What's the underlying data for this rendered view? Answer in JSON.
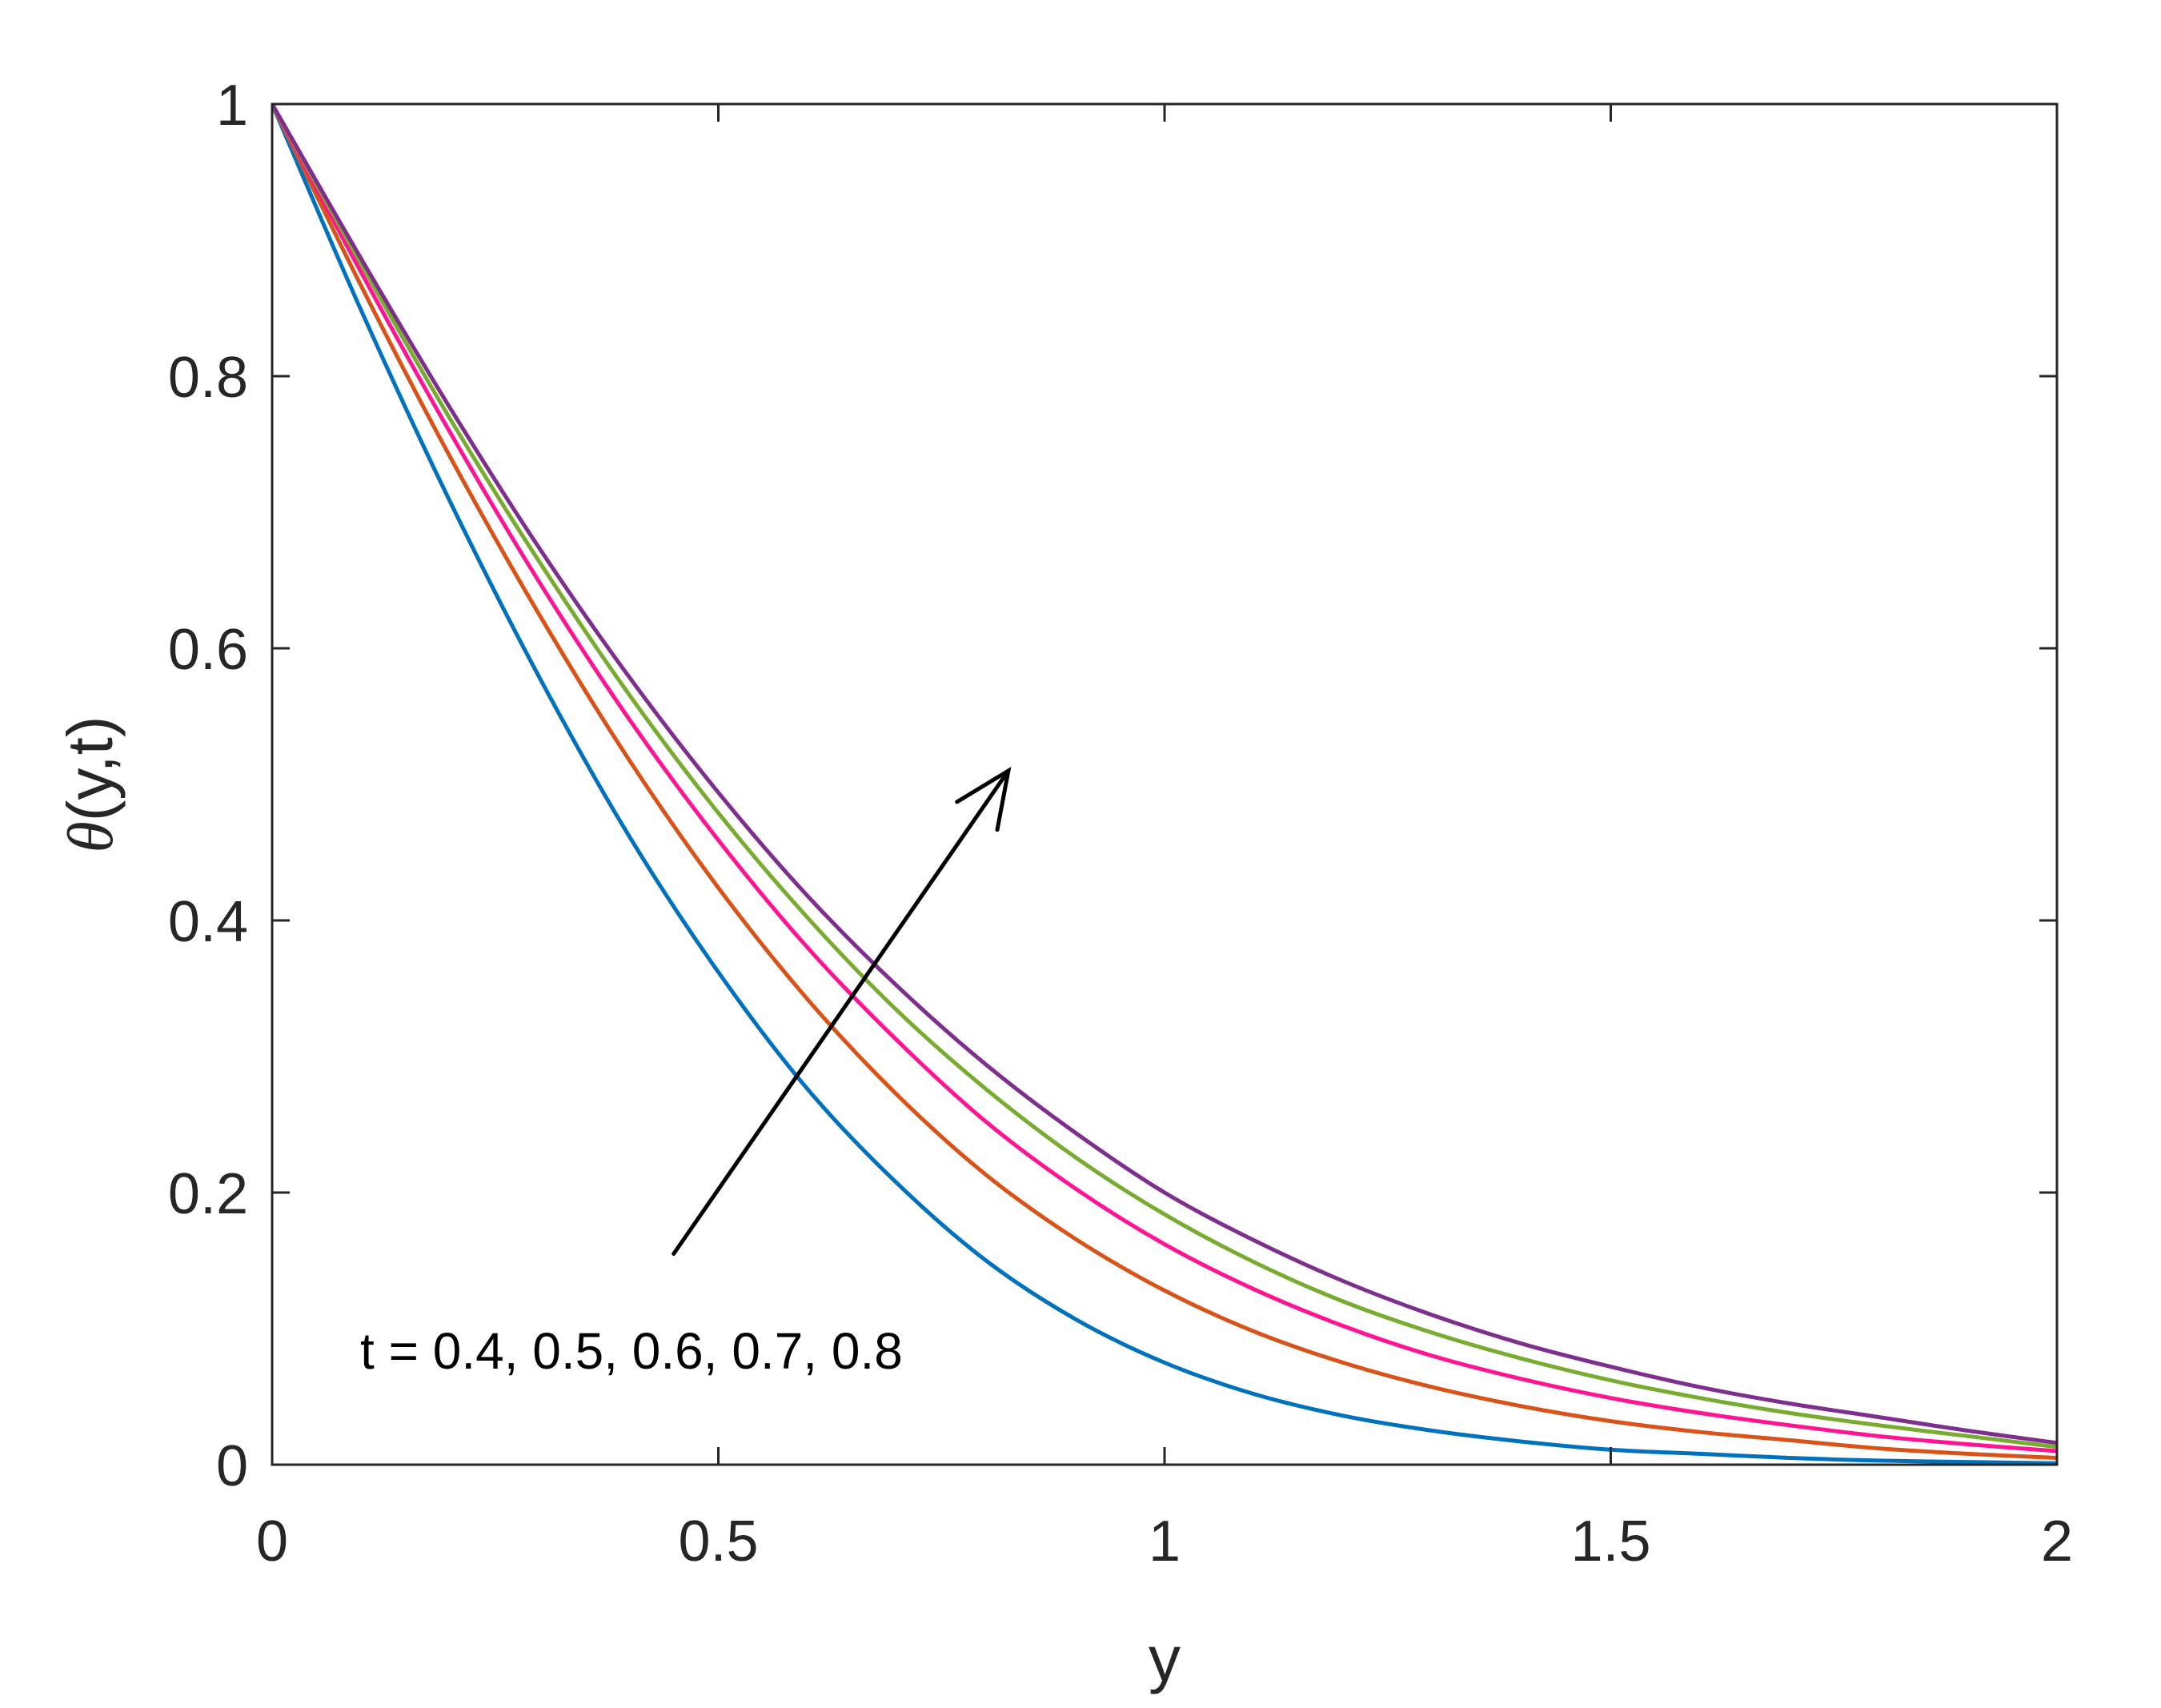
{
  "chart_data": {
    "type": "line",
    "title": "",
    "xlabel": "y",
    "ylabel_symbol": "θ",
    "ylabel_rest": "(y,t)",
    "xlim": [
      0,
      2
    ],
    "ylim": [
      0,
      1
    ],
    "xticks": [
      0,
      0.5,
      1,
      1.5,
      2
    ],
    "xtick_labels": [
      "0",
      "0.5",
      "1",
      "1.5",
      "2"
    ],
    "yticks": [
      0,
      0.2,
      0.4,
      0.6,
      0.8,
      1
    ],
    "ytick_labels": [
      "0",
      "0.2",
      "0.4",
      "0.6",
      "0.8",
      "1"
    ],
    "grid": false,
    "legend": "none",
    "annotation": "t = 0.4, 0.5, 0.6, 0.7, 0.8",
    "arrow": {
      "from": [
        0.45,
        0.155
      ],
      "to": [
        0.825,
        0.51
      ]
    },
    "x": [
      0,
      0.1,
      0.2,
      0.3,
      0.4,
      0.5,
      0.6,
      0.7,
      0.8,
      0.9,
      1.0,
      1.1,
      1.2,
      1.3,
      1.4,
      1.5,
      1.6,
      1.7,
      1.8,
      1.9,
      2.0
    ],
    "series": [
      {
        "color": "#0072BD",
        "values": [
          1.0,
          0.848,
          0.707,
          0.578,
          0.462,
          0.362,
          0.276,
          0.207,
          0.15,
          0.107,
          0.075,
          0.052,
          0.036,
          0.025,
          0.017,
          0.011,
          0.008,
          0.005,
          0.003,
          0.002,
          0.001
        ]
      },
      {
        "color": "#D95319",
        "values": [
          1.0,
          0.866,
          0.74,
          0.624,
          0.518,
          0.424,
          0.342,
          0.272,
          0.213,
          0.166,
          0.128,
          0.098,
          0.075,
          0.057,
          0.043,
          0.032,
          0.024,
          0.018,
          0.012,
          0.008,
          0.005
        ]
      },
      {
        "color": "#FF1493",
        "values": [
          1.0,
          0.876,
          0.758,
          0.648,
          0.548,
          0.459,
          0.38,
          0.312,
          0.252,
          0.203,
          0.162,
          0.129,
          0.102,
          0.08,
          0.063,
          0.049,
          0.038,
          0.029,
          0.021,
          0.015,
          0.01
        ]
      },
      {
        "color": "#77AC30",
        "values": [
          1.0,
          0.882,
          0.768,
          0.663,
          0.566,
          0.479,
          0.402,
          0.334,
          0.276,
          0.226,
          0.184,
          0.149,
          0.12,
          0.097,
          0.078,
          0.062,
          0.049,
          0.038,
          0.029,
          0.021,
          0.013
        ]
      },
      {
        "color": "#7E2F8E",
        "values": [
          1.0,
          0.886,
          0.776,
          0.673,
          0.579,
          0.494,
          0.418,
          0.352,
          0.294,
          0.244,
          0.2,
          0.165,
          0.135,
          0.11,
          0.089,
          0.072,
          0.057,
          0.045,
          0.035,
          0.025,
          0.016
        ]
      }
    ]
  }
}
